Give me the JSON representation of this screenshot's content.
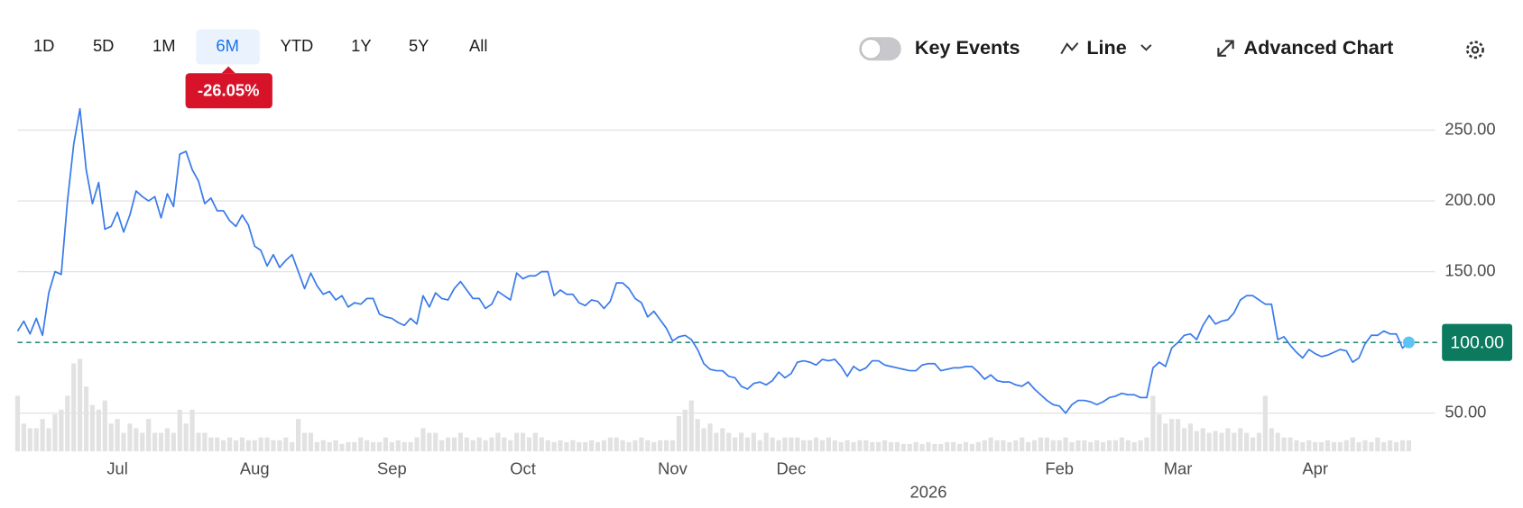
{
  "toolbar": {
    "ranges": [
      "1D",
      "5D",
      "1M",
      "6M",
      "YTD",
      "1Y",
      "5Y",
      "All"
    ],
    "active_range": 3,
    "change": "-26.05%",
    "key_events": "Key Events",
    "chart_style": "Line",
    "advanced": "Advanced Chart"
  },
  "chart_data": {
    "type": "line",
    "categories": [
      null,
      null,
      null,
      null,
      null,
      null,
      null,
      null,
      null,
      null,
      null,
      null,
      null,
      null,
      null,
      null,
      "Jul",
      null,
      null,
      null,
      null,
      null,
      null,
      null,
      null,
      null,
      null,
      null,
      null,
      null,
      null,
      null,
      null,
      null,
      null,
      null,
      null,
      null,
      "Aug",
      null,
      null,
      null,
      null,
      null,
      null,
      null,
      null,
      null,
      null,
      null,
      null,
      null,
      null,
      null,
      null,
      null,
      null,
      null,
      null,
      null,
      "Sep",
      null,
      null,
      null,
      null,
      null,
      null,
      null,
      null,
      null,
      null,
      null,
      null,
      null,
      null,
      null,
      null,
      null,
      null,
      null,
      null,
      "Oct",
      null,
      null,
      null,
      null,
      null,
      null,
      null,
      null,
      null,
      null,
      null,
      null,
      null,
      null,
      null,
      null,
      null,
      null,
      null,
      null,
      null,
      null,
      null,
      "Nov",
      null,
      null,
      null,
      null,
      null,
      null,
      null,
      null,
      null,
      null,
      null,
      null,
      null,
      null,
      null,
      null,
      null,
      null,
      "Dec",
      null,
      null,
      null,
      null,
      null,
      null,
      null,
      null,
      null,
      null,
      null,
      null,
      null,
      null,
      null,
      null,
      null,
      null,
      null,
      null,
      null,
      "2026",
      null,
      null,
      null,
      null,
      null,
      null,
      null,
      null,
      null,
      null,
      null,
      null,
      null,
      null,
      null,
      null,
      null,
      null,
      null,
      null,
      "Feb",
      null,
      null,
      null,
      null,
      null,
      null,
      null,
      null,
      null,
      null,
      null,
      null,
      null,
      null,
      null,
      null,
      null,
      null,
      "Mar",
      null,
      null,
      null,
      null,
      null,
      null,
      null,
      null,
      null,
      null,
      null,
      null,
      null,
      null,
      null,
      null,
      null,
      null,
      null,
      null,
      null,
      "Apr",
      null,
      null,
      null,
      null,
      null,
      null,
      null,
      null,
      null,
      null,
      null,
      null,
      null,
      null,
      null
    ],
    "series": [
      {
        "color": "#3a7bea",
        "values": [
          108,
          115,
          106,
          117,
          105,
          135,
          150,
          148,
          200,
          240,
          265,
          222,
          198,
          213,
          180,
          182,
          192,
          178,
          190,
          207,
          203,
          200,
          203,
          188,
          205,
          196,
          233,
          235,
          222,
          214,
          198,
          202,
          193,
          193,
          186,
          182,
          190,
          183,
          168,
          165,
          154,
          162,
          153,
          158,
          162,
          150,
          138,
          149,
          140,
          134,
          136,
          130,
          133,
          125,
          128,
          127,
          131,
          131,
          120,
          118,
          117,
          114,
          112,
          117,
          113,
          133,
          125,
          135,
          131,
          130,
          138,
          143,
          137,
          131,
          131,
          124,
          127,
          136,
          133,
          130,
          149,
          145,
          147,
          147,
          150,
          150,
          133,
          137,
          134,
          134,
          128,
          126,
          130,
          129,
          124,
          129,
          142,
          142,
          138,
          131,
          128,
          118,
          122,
          116,
          110,
          101,
          104,
          105,
          102,
          95,
          85,
          81,
          80,
          80,
          76,
          75,
          69,
          67,
          71,
          72,
          70,
          73,
          79,
          75,
          78,
          86,
          87,
          86,
          84,
          88,
          87,
          88,
          83,
          76,
          83,
          80,
          82,
          87,
          87,
          84,
          83,
          82,
          81,
          80,
          80,
          84,
          85,
          85,
          80,
          81,
          82,
          82,
          83,
          83,
          79,
          74,
          77,
          73,
          72,
          72,
          70,
          69,
          72,
          67,
          63,
          59,
          56,
          55,
          50,
          56,
          59,
          59,
          58,
          56,
          58,
          61,
          62,
          64,
          63,
          63,
          61,
          61,
          82,
          86,
          83,
          96,
          100,
          105,
          106,
          102,
          112,
          119,
          113,
          115,
          116,
          121,
          130,
          133,
          133,
          130,
          127,
          127,
          102,
          104,
          98,
          93,
          89,
          95,
          92,
          90,
          91,
          93,
          95,
          94,
          86,
          89,
          99,
          105,
          105,
          108,
          106,
          106,
          96,
          100
        ]
      }
    ],
    "volume_color": "#e2e2e2",
    "volume_values": [
      60,
      30,
      25,
      25,
      35,
      25,
      40,
      45,
      60,
      95,
      100,
      70,
      50,
      45,
      55,
      30,
      35,
      20,
      30,
      25,
      20,
      35,
      20,
      20,
      25,
      20,
      45,
      30,
      45,
      20,
      20,
      15,
      15,
      12,
      15,
      12,
      15,
      12,
      12,
      15,
      15,
      12,
      12,
      15,
      10,
      35,
      20,
      20,
      10,
      12,
      10,
      12,
      8,
      10,
      10,
      15,
      12,
      10,
      10,
      15,
      10,
      12,
      10,
      10,
      15,
      25,
      20,
      20,
      12,
      15,
      15,
      20,
      15,
      12,
      15,
      12,
      15,
      20,
      15,
      12,
      20,
      20,
      15,
      20,
      15,
      12,
      10,
      12,
      10,
      12,
      10,
      10,
      12,
      10,
      12,
      15,
      15,
      12,
      10,
      12,
      15,
      12,
      10,
      12,
      12,
      12,
      38,
      45,
      55,
      35,
      25,
      30,
      20,
      25,
      20,
      15,
      20,
      15,
      20,
      12,
      20,
      15,
      12,
      15,
      15,
      15,
      12,
      12,
      15,
      12,
      15,
      12,
      10,
      12,
      10,
      12,
      12,
      10,
      10,
      12,
      10,
      10,
      8,
      8,
      10,
      8,
      10,
      8,
      8,
      10,
      10,
      8,
      10,
      8,
      10,
      12,
      15,
      12,
      12,
      10,
      12,
      15,
      10,
      12,
      15,
      15,
      12,
      12,
      15,
      10,
      12,
      12,
      10,
      12,
      10,
      12,
      12,
      15,
      12,
      10,
      12,
      15,
      60,
      40,
      30,
      35,
      35,
      25,
      30,
      22,
      25,
      20,
      22,
      20,
      25,
      20,
      25,
      20,
      15,
      20,
      60,
      25,
      20,
      15,
      15,
      12,
      10,
      12,
      10,
      10,
      12,
      10,
      10,
      12,
      15,
      10,
      12,
      10,
      15,
      10,
      12,
      10,
      12,
      12
    ],
    "ylim": [
      23,
      273
    ],
    "yticks": [
      {
        "value": 50,
        "label": "50.00"
      },
      {
        "value": 150,
        "label": "150.00"
      },
      {
        "value": 200,
        "label": "200.00"
      },
      {
        "value": 250,
        "label": "250.00"
      }
    ],
    "last_price": {
      "value": 100,
      "label": "100.00",
      "color": "#0b7a5e"
    },
    "grid": true
  }
}
